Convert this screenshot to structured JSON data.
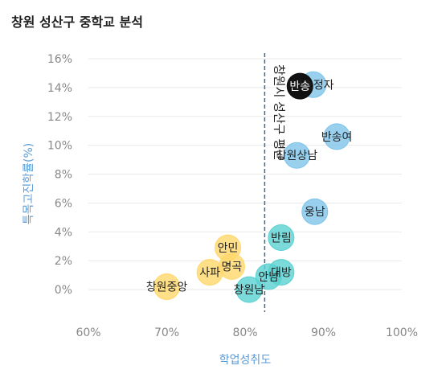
{
  "title": "창원 성산구 중학교 분석",
  "chart_data": {
    "type": "scatter",
    "title": "창원 성산구 중학교 분석",
    "xlabel": "학업성취도",
    "ylabel": "특목고진학률(%)",
    "xlim": [
      60,
      100
    ],
    "ylim": [
      -2,
      16
    ],
    "xticks": [
      60,
      70,
      80,
      90,
      100
    ],
    "yticks": [
      0,
      2,
      4,
      6,
      8,
      10,
      12,
      14,
      16
    ],
    "x_tick_labels": [
      "60%",
      "70%",
      "80%",
      "90%",
      "100%"
    ],
    "y_tick_labels": [
      "0%",
      "2%",
      "4%",
      "6%",
      "8%",
      "10%",
      "12%",
      "14%",
      "16%"
    ],
    "grid": "horizontal",
    "reference_line": {
      "x": 82.5,
      "label": "창원시 성산구 평균"
    },
    "colors": {
      "teal": "#5ad1d1",
      "blue": "#7ec4ea",
      "yellow": "#ffd76a",
      "highlight": "#111111",
      "grid": "#e9e9e9",
      "refline": "#3a6a96"
    },
    "points": [
      {
        "name": "반송정자",
        "x": 88.7,
        "y": 14.2,
        "color": "blue"
      },
      {
        "name": "반송",
        "x": 87.0,
        "y": 14.1,
        "color": "highlight"
      },
      {
        "name": "반송여",
        "x": 91.7,
        "y": 10.6,
        "color": "blue"
      },
      {
        "name": "창원상남",
        "x": 86.6,
        "y": 9.3,
        "color": "blue"
      },
      {
        "name": "웅남",
        "x": 88.9,
        "y": 5.4,
        "color": "blue"
      },
      {
        "name": "반림",
        "x": 84.6,
        "y": 3.6,
        "color": "teal"
      },
      {
        "name": "안민",
        "x": 77.8,
        "y": 2.9,
        "color": "yellow"
      },
      {
        "name": "대방",
        "x": 84.6,
        "y": 1.2,
        "color": "teal"
      },
      {
        "name": "안남",
        "x": 83.0,
        "y": 0.9,
        "color": "teal"
      },
      {
        "name": "명곡",
        "x": 78.3,
        "y": 1.6,
        "color": "yellow"
      },
      {
        "name": "사파",
        "x": 75.5,
        "y": 1.2,
        "color": "yellow"
      },
      {
        "name": "창원남",
        "x": 80.5,
        "y": 0.0,
        "color": "teal"
      },
      {
        "name": "창원중앙",
        "x": 70.0,
        "y": 0.2,
        "color": "yellow"
      }
    ]
  }
}
